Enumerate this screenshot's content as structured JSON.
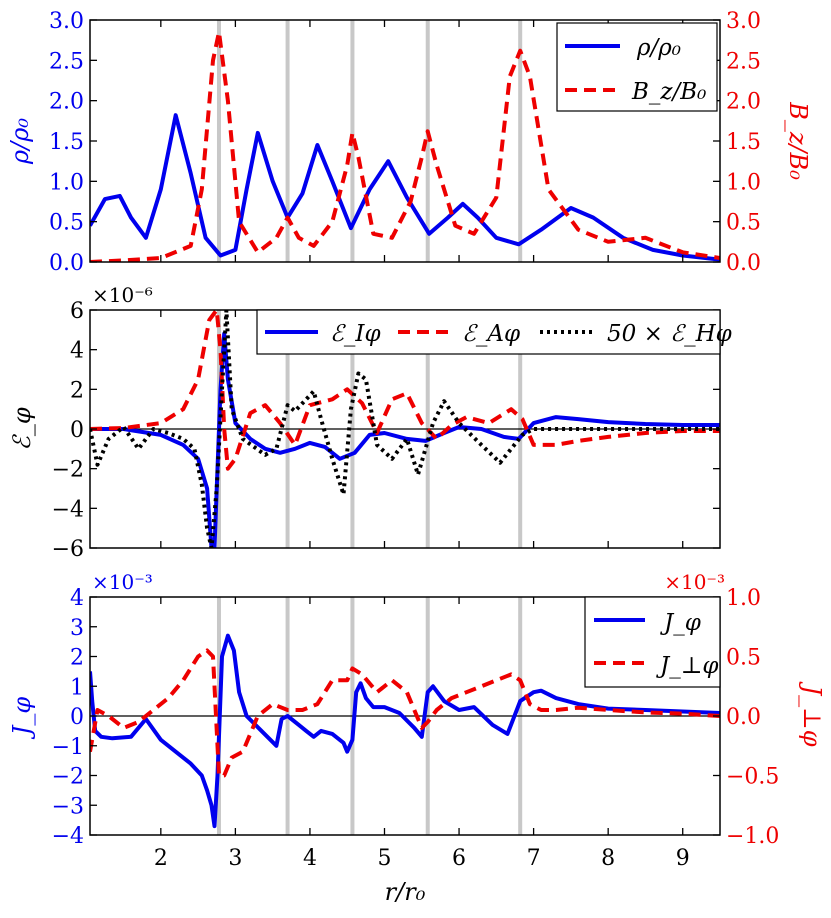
{
  "colors": {
    "blue": "#0000ee",
    "red": "#ee0000",
    "black": "#000000",
    "grey": "#c8c8c8"
  },
  "chart_data": [
    {
      "type": "line",
      "id": "density",
      "xlim": [
        1.05,
        9.5
      ],
      "ylim": [
        0,
        3
      ],
      "y2lim": [
        0,
        3
      ],
      "ylabel": "ρ/ρ₀",
      "y2label": "B_z/B₀",
      "yticks": [
        "0.0",
        "0.5",
        "1.0",
        "1.5",
        "2.0",
        "2.5",
        "3.0"
      ],
      "y2ticks": [
        "0.0",
        "0.5",
        "1.0",
        "1.5",
        "2.0",
        "2.5",
        "3.0"
      ],
      "vlines": [
        2.78,
        3.7,
        4.57,
        5.58,
        6.82
      ],
      "legend": [
        {
          "label": "ρ/ρ₀",
          "color": "#0000ee",
          "style": "solid"
        },
        {
          "label": "B_z/B₀",
          "color": "#ee0000",
          "style": "dashed"
        }
      ],
      "series": [
        {
          "name": "ρ/ρ₀",
          "axis": "left",
          "color": "#0000ee",
          "style": "solid",
          "x": [
            1.05,
            1.25,
            1.45,
            1.6,
            1.8,
            2.0,
            2.2,
            2.4,
            2.6,
            2.8,
            3.0,
            3.15,
            3.3,
            3.5,
            3.7,
            3.9,
            4.1,
            4.3,
            4.55,
            4.8,
            5.05,
            5.3,
            5.6,
            5.85,
            6.05,
            6.25,
            6.5,
            6.8,
            7.1,
            7.5,
            7.8,
            8.2,
            8.6,
            9.0,
            9.5
          ],
          "y": [
            0.45,
            0.78,
            0.82,
            0.55,
            0.3,
            0.9,
            1.82,
            1.1,
            0.3,
            0.08,
            0.15,
            0.9,
            1.6,
            1.0,
            0.55,
            0.85,
            1.45,
            1.0,
            0.42,
            0.9,
            1.25,
            0.8,
            0.35,
            0.55,
            0.72,
            0.55,
            0.3,
            0.22,
            0.4,
            0.67,
            0.55,
            0.3,
            0.15,
            0.08,
            0.03
          ]
        },
        {
          "name": "B_z/B₀",
          "axis": "right",
          "color": "#ee0000",
          "style": "dashed",
          "x": [
            1.05,
            1.5,
            2.0,
            2.4,
            2.55,
            2.7,
            2.78,
            2.9,
            3.05,
            3.3,
            3.55,
            3.7,
            3.85,
            4.05,
            4.3,
            4.5,
            4.57,
            4.65,
            4.85,
            5.1,
            5.35,
            5.5,
            5.58,
            5.7,
            5.95,
            6.2,
            6.5,
            6.68,
            6.82,
            6.95,
            7.2,
            7.6,
            8.0,
            8.5,
            9.0,
            9.5
          ],
          "y": [
            0.0,
            0.02,
            0.05,
            0.2,
            0.9,
            2.5,
            2.85,
            2.0,
            0.5,
            0.12,
            0.3,
            0.55,
            0.3,
            0.2,
            0.5,
            1.2,
            1.6,
            1.3,
            0.35,
            0.3,
            0.75,
            1.3,
            1.62,
            1.2,
            0.45,
            0.35,
            0.8,
            2.3,
            2.62,
            2.3,
            0.9,
            0.4,
            0.25,
            0.3,
            0.12,
            0.05
          ]
        }
      ]
    },
    {
      "type": "line",
      "id": "emf",
      "xlim": [
        1.05,
        9.5
      ],
      "ylim": [
        -6,
        6
      ],
      "ylabel": "ℰ_φ",
      "multiplier": "×10⁻⁶",
      "yticks": [
        "−6",
        "−4",
        "−2",
        "0",
        "2",
        "4",
        "6"
      ],
      "vlines": [
        2.78,
        3.7,
        4.57,
        5.58,
        6.82
      ],
      "legend": [
        {
          "label": "ℰ_Iφ",
          "color": "#0000ee",
          "style": "solid"
        },
        {
          "label": "ℰ_Aφ",
          "color": "#ee0000",
          "style": "dashed"
        },
        {
          "label": "50 × ℰ_Hφ",
          "color": "#000000",
          "style": "dotted"
        }
      ],
      "series": [
        {
          "name": "ℰ_Iφ",
          "color": "#0000ee",
          "style": "solid",
          "x": [
            1.05,
            1.5,
            2.0,
            2.3,
            2.5,
            2.62,
            2.68,
            2.72,
            2.76,
            2.8,
            2.85,
            2.9,
            3.0,
            3.2,
            3.4,
            3.6,
            3.8,
            4.0,
            4.2,
            4.4,
            4.6,
            4.8,
            5.0,
            5.3,
            5.55,
            5.8,
            6.0,
            6.3,
            6.6,
            6.8,
            7.0,
            7.3,
            7.6,
            8.0,
            8.5,
            9.0,
            9.5
          ],
          "y": [
            0,
            0,
            -0.3,
            -0.8,
            -1.5,
            -3.0,
            -6,
            -6,
            -2.0,
            2.0,
            4.8,
            2.5,
            0.3,
            -0.5,
            -1.0,
            -1.2,
            -1.0,
            -0.7,
            -0.9,
            -1.5,
            -1.2,
            -0.3,
            -0.2,
            -0.5,
            -0.6,
            -0.2,
            0.1,
            0,
            -0.4,
            -0.5,
            0.3,
            0.6,
            0.5,
            0.35,
            0.25,
            0.2,
            0.2
          ]
        },
        {
          "name": "ℰ_Aφ",
          "color": "#ee0000",
          "style": "dashed",
          "x": [
            1.05,
            1.5,
            2.0,
            2.3,
            2.5,
            2.65,
            2.75,
            2.8,
            2.85,
            2.9,
            3.0,
            3.2,
            3.4,
            3.6,
            3.8,
            4.0,
            4.3,
            4.5,
            4.7,
            4.9,
            5.1,
            5.3,
            5.5,
            5.7,
            5.9,
            6.1,
            6.4,
            6.7,
            6.85,
            7.0,
            7.3,
            7.6,
            8.0,
            8.5,
            9.0,
            9.5
          ],
          "y": [
            0,
            0.05,
            0.3,
            1.0,
            2.5,
            5.5,
            6,
            4.0,
            0,
            -2.0,
            -1.5,
            0.8,
            1.2,
            0.3,
            -0.8,
            1.2,
            1.5,
            2.0,
            1.3,
            -0.2,
            1.5,
            1.8,
            0.3,
            -0.5,
            0.2,
            0.6,
            0.3,
            1.0,
            0.5,
            -0.8,
            -0.8,
            -0.6,
            -0.4,
            -0.2,
            -0.1,
            -0.1
          ]
        },
        {
          "name": "50 × ℰ_Hφ",
          "color": "#000000",
          "style": "dotted",
          "x": [
            1.05,
            1.15,
            1.3,
            1.5,
            1.7,
            1.9,
            2.1,
            2.3,
            2.45,
            2.55,
            2.62,
            2.68,
            2.75,
            2.82,
            2.88,
            2.95,
            3.1,
            3.4,
            3.55,
            3.7,
            3.8,
            3.95,
            4.05,
            4.15,
            4.3,
            4.45,
            4.55,
            4.65,
            4.75,
            4.9,
            5.1,
            5.3,
            5.45,
            5.55,
            5.65,
            5.8,
            6.0,
            6.3,
            6.55,
            6.7,
            6.85,
            7.0,
            7.3,
            7.6,
            8.0,
            8.5,
            9.0,
            9.5
          ],
          "y": [
            0,
            -1.8,
            -0.5,
            0.1,
            -1.0,
            0,
            -0.2,
            -0.5,
            -1.0,
            -2.8,
            -5.0,
            -6,
            -3.0,
            2.0,
            6,
            1.0,
            -0.5,
            -1.3,
            -1.0,
            1.2,
            0.9,
            1.5,
            1.9,
            0.5,
            -1.5,
            -3.3,
            1.0,
            2.8,
            2.5,
            -0.8,
            -1.5,
            -0.5,
            -2.3,
            -1.0,
            0.3,
            1.4,
            0.3,
            -0.8,
            -1.7,
            -1.0,
            -0.3,
            0,
            0,
            0,
            0,
            0,
            0,
            0
          ]
        }
      ]
    },
    {
      "type": "line",
      "id": "current",
      "xlim": [
        1.05,
        9.5
      ],
      "ylim": [
        -4,
        4
      ],
      "y2lim": [
        -1.0,
        1.0
      ],
      "ylabel": "J_φ",
      "y2label": "J_⊥φ",
      "xlabel": "r/r₀",
      "multiplier": "×10⁻³",
      "multiplier2": "×10⁻³",
      "yticks": [
        "−4",
        "−3",
        "−2",
        "−1",
        "0",
        "1",
        "2",
        "3",
        "4"
      ],
      "y2ticks": [
        "−1.0",
        "−0.5",
        "0.0",
        "0.5",
        "1.0"
      ],
      "xticks": [
        "2",
        "3",
        "4",
        "5",
        "6",
        "7",
        "8",
        "9"
      ],
      "vlines": [
        2.78,
        3.7,
        4.57,
        5.58,
        6.82
      ],
      "legend": [
        {
          "label": "J_φ",
          "color": "#0000ee",
          "style": "solid"
        },
        {
          "label": "J_⊥φ",
          "color": "#ee0000",
          "style": "dashed"
        }
      ],
      "series": [
        {
          "name": "J_φ",
          "axis": "left",
          "color": "#0000ee",
          "style": "solid",
          "x": [
            1.05,
            1.08,
            1.12,
            1.2,
            1.35,
            1.6,
            1.8,
            2.0,
            2.2,
            2.4,
            2.55,
            2.62,
            2.68,
            2.72,
            2.76,
            2.82,
            2.9,
            2.98,
            3.05,
            3.15,
            3.35,
            3.55,
            3.62,
            3.7,
            3.85,
            3.95,
            4.05,
            4.15,
            4.3,
            4.45,
            4.5,
            4.57,
            4.62,
            4.68,
            4.75,
            4.85,
            5.0,
            5.2,
            5.4,
            5.5,
            5.58,
            5.65,
            5.8,
            6.0,
            6.2,
            6.45,
            6.65,
            6.82,
            7.0,
            7.1,
            7.3,
            7.6,
            8.0,
            8.5,
            9.0,
            9.5
          ],
          "y": [
            1.5,
            0.5,
            -0.5,
            -0.7,
            -0.75,
            -0.7,
            -0.1,
            -0.8,
            -1.2,
            -1.6,
            -2.0,
            -2.5,
            -3.0,
            -3.7,
            -2.0,
            2.0,
            2.7,
            2.2,
            0.8,
            0,
            -0.5,
            -1.0,
            -0.1,
            0,
            -0.3,
            -0.5,
            -0.7,
            -0.5,
            -0.6,
            -0.9,
            -1.2,
            -0.8,
            0.8,
            1.1,
            0.6,
            0.3,
            0.3,
            0.1,
            -0.4,
            -0.7,
            0.8,
            1.0,
            0.5,
            0.2,
            0.3,
            -0.3,
            -0.6,
            0.5,
            0.8,
            0.85,
            0.6,
            0.4,
            0.25,
            0.2,
            0.15,
            0.1
          ]
        },
        {
          "name": "J_⊥φ",
          "axis": "right",
          "color": "#ee0000",
          "style": "dashed",
          "x": [
            1.05,
            1.15,
            1.3,
            1.5,
            1.7,
            1.9,
            2.1,
            2.3,
            2.5,
            2.62,
            2.7,
            2.78,
            2.85,
            2.95,
            3.1,
            3.3,
            3.5,
            3.7,
            3.9,
            4.1,
            4.3,
            4.5,
            4.57,
            4.7,
            4.9,
            5.1,
            5.3,
            5.5,
            5.58,
            5.7,
            5.9,
            6.1,
            6.3,
            6.5,
            6.7,
            6.82,
            6.95,
            7.1,
            7.3,
            7.6,
            8.0,
            8.5,
            9.0,
            9.5
          ],
          "y": [
            -0.3,
            0.05,
            0,
            -0.1,
            -0.05,
            0.05,
            0.15,
            0.3,
            0.5,
            0.55,
            0.5,
            -0.5,
            -0.5,
            -0.35,
            -0.3,
            0,
            0.1,
            0.05,
            0.05,
            0.1,
            0.3,
            0.3,
            0.4,
            0.35,
            0.2,
            0.3,
            0.2,
            -0.1,
            -0.05,
            0.05,
            0.15,
            0.2,
            0.25,
            0.3,
            0.35,
            0.3,
            0.1,
            0.05,
            0.05,
            0.07,
            0.05,
            0.03,
            0.02,
            0.0
          ]
        }
      ]
    }
  ]
}
